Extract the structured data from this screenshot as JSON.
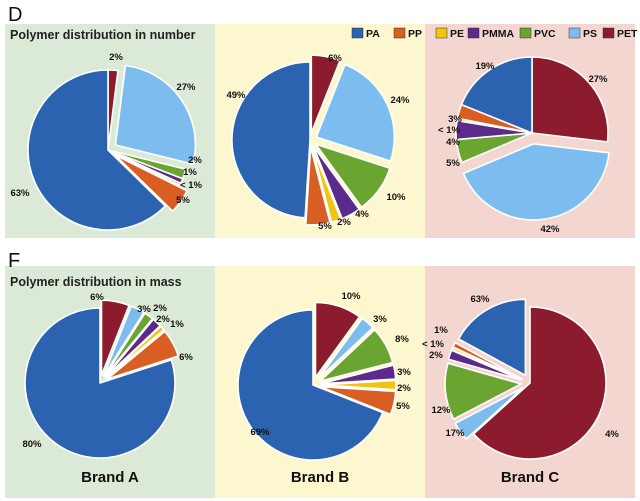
{
  "panels": [
    {
      "letter": "D",
      "title": "Polymer distribution in number"
    },
    {
      "letter": "F",
      "title": "Polymer distribution in mass"
    }
  ],
  "legend": [
    {
      "label": "PA",
      "color": "#2c63b0"
    },
    {
      "label": "PP",
      "color": "#d85e24"
    },
    {
      "label": "PE",
      "color": "#f2c40f"
    },
    {
      "label": "PMMA",
      "color": "#5b2a8a"
    },
    {
      "label": "PVC",
      "color": "#6aa431"
    },
    {
      "label": "PS",
      "color": "#7dbcee"
    },
    {
      "label": "PET",
      "color": "#8c1b2e"
    }
  ],
  "brands": [
    "Brand A",
    "Brand B",
    "Brand C"
  ],
  "backgrounds": [
    "#dbead6",
    "#fdf7cf",
    "#f4d6d0"
  ],
  "chart_data": [
    {
      "type": "pie",
      "panel": "D",
      "brand": "Brand A",
      "slices": [
        {
          "polymer": "PET",
          "label": "2%",
          "value": 2
        },
        {
          "polymer": "PS",
          "label": "27%",
          "value": 27
        },
        {
          "polymer": "PVC",
          "label": "2%",
          "value": 2
        },
        {
          "polymer": "PMMA",
          "label": "1%",
          "value": 1
        },
        {
          "polymer": "PE",
          "label": "< 1%",
          "value": 0.5
        },
        {
          "polymer": "PP",
          "label": "5%",
          "value": 5
        },
        {
          "polymer": "PA",
          "label": "63%",
          "value": 63
        }
      ]
    },
    {
      "type": "pie",
      "panel": "D",
      "brand": "Brand B",
      "slices": [
        {
          "polymer": "PET",
          "label": "6%",
          "value": 6
        },
        {
          "polymer": "PS",
          "label": "24%",
          "value": 24
        },
        {
          "polymer": "PVC",
          "label": "10%",
          "value": 10
        },
        {
          "polymer": "PMMA",
          "label": "4%",
          "value": 4
        },
        {
          "polymer": "PE",
          "label": "2%",
          "value": 2
        },
        {
          "polymer": "PP",
          "label": "5%",
          "value": 5
        },
        {
          "polymer": "PA",
          "label": "49%",
          "value": 49
        }
      ]
    },
    {
      "type": "pie",
      "panel": "D",
      "brand": "Brand C",
      "slices": [
        {
          "polymer": "PET",
          "label": "27%",
          "value": 27
        },
        {
          "polymer": "PS",
          "label": "42%",
          "value": 42
        },
        {
          "polymer": "PVC",
          "label": "5%",
          "value": 5
        },
        {
          "polymer": "PMMA",
          "label": "4%",
          "value": 4
        },
        {
          "polymer": "PE",
          "label": "< 1%",
          "value": 0.5
        },
        {
          "polymer": "PP",
          "label": "3%",
          "value": 3
        },
        {
          "polymer": "PA",
          "label": "19%",
          "value": 19
        }
      ]
    },
    {
      "type": "pie",
      "panel": "F",
      "brand": "Brand A",
      "slices": [
        {
          "polymer": "PET",
          "label": "6%",
          "value": 6
        },
        {
          "polymer": "PS",
          "label": "3%",
          "value": 3
        },
        {
          "polymer": "PVC",
          "label": "2%",
          "value": 2
        },
        {
          "polymer": "PMMA",
          "label": "2%",
          "value": 2
        },
        {
          "polymer": "PE",
          "label": "1%",
          "value": 1
        },
        {
          "polymer": "PP",
          "label": "6%",
          "value": 6
        },
        {
          "polymer": "PA",
          "label": "80%",
          "value": 80
        }
      ]
    },
    {
      "type": "pie",
      "panel": "F",
      "brand": "Brand B",
      "slices": [
        {
          "polymer": "PET",
          "label": "10%",
          "value": 10
        },
        {
          "polymer": "PS",
          "label": "3%",
          "value": 3
        },
        {
          "polymer": "PVC",
          "label": "8%",
          "value": 8
        },
        {
          "polymer": "PMMA",
          "label": "3%",
          "value": 3
        },
        {
          "polymer": "PE",
          "label": "2%",
          "value": 2
        },
        {
          "polymer": "PP",
          "label": "5%",
          "value": 5
        },
        {
          "polymer": "PA",
          "label": "69%",
          "value": 69
        }
      ]
    },
    {
      "type": "pie",
      "panel": "F",
      "brand": "Brand C",
      "slices": [
        {
          "polymer": "PET",
          "label": "63%",
          "value": 63
        },
        {
          "polymer": "PS",
          "label": "4%",
          "value": 4
        },
        {
          "polymer": "PVC",
          "label": "12%",
          "value": 12
        },
        {
          "polymer": "PMMA",
          "label": "2%",
          "value": 2
        },
        {
          "polymer": "PE",
          "label": "< 1%",
          "value": 0.5
        },
        {
          "polymer": "PP",
          "label": "1%",
          "value": 1
        },
        {
          "polymer": "PA",
          "label": "17%",
          "value": 17
        }
      ]
    }
  ]
}
